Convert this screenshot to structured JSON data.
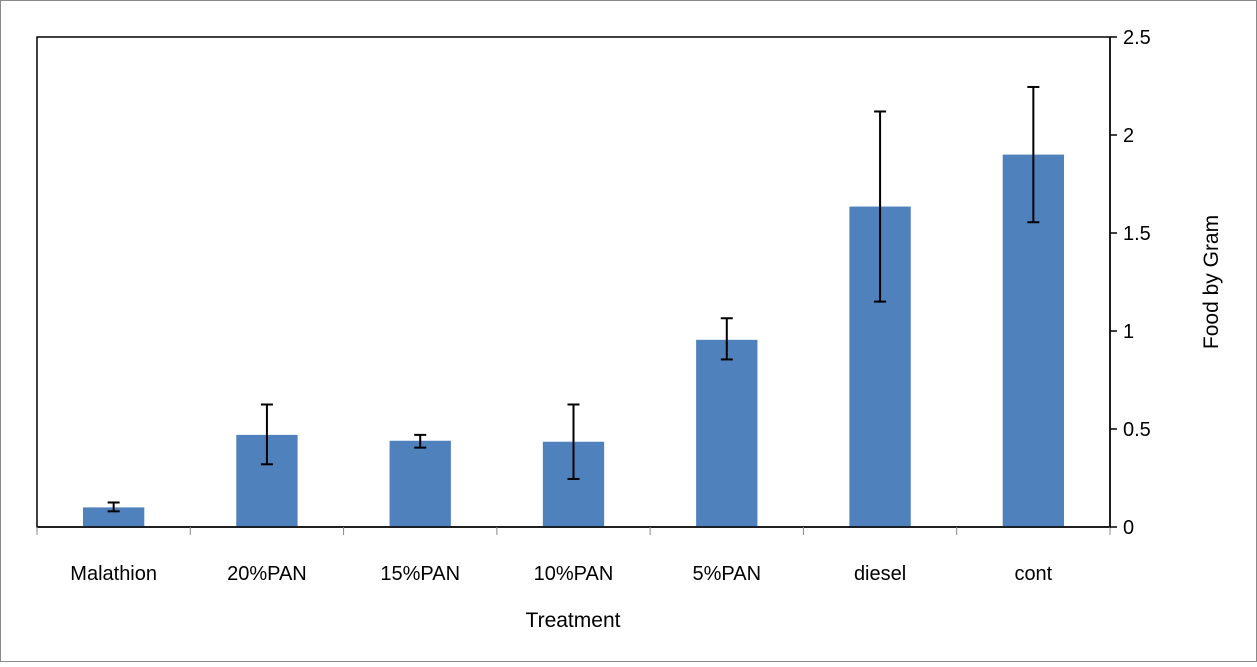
{
  "chart_data": {
    "type": "bar",
    "title": "",
    "xlabel": "Treatment",
    "ylabel": "Food by Gram",
    "y_axis_side": "right",
    "categories": [
      "Malathion",
      "20%PAN",
      "15%PAN",
      "10%PAN",
      "5%PAN",
      "diesel",
      "cont"
    ],
    "values": [
      0.1,
      0.47,
      0.44,
      0.435,
      0.955,
      1.635,
      1.9
    ],
    "error_bars": [
      {
        "low": 0.08,
        "high": 0.125
      },
      {
        "low": 0.32,
        "high": 0.625
      },
      {
        "low": 0.405,
        "high": 0.47
      },
      {
        "low": 0.245,
        "high": 0.625
      },
      {
        "low": 0.855,
        "high": 1.065
      },
      {
        "low": 1.15,
        "high": 2.12
      },
      {
        "low": 1.555,
        "high": 2.245
      }
    ],
    "ylim": [
      0,
      2.5
    ],
    "y_ticks": [
      "0",
      "0.5",
      "1",
      "1.5",
      "2",
      "2.5"
    ],
    "grid": false,
    "legend": "none",
    "colors": {
      "bar": "#4f81bd",
      "error_bar": "#000000",
      "axis": "#000000",
      "frame": "#898989"
    }
  }
}
